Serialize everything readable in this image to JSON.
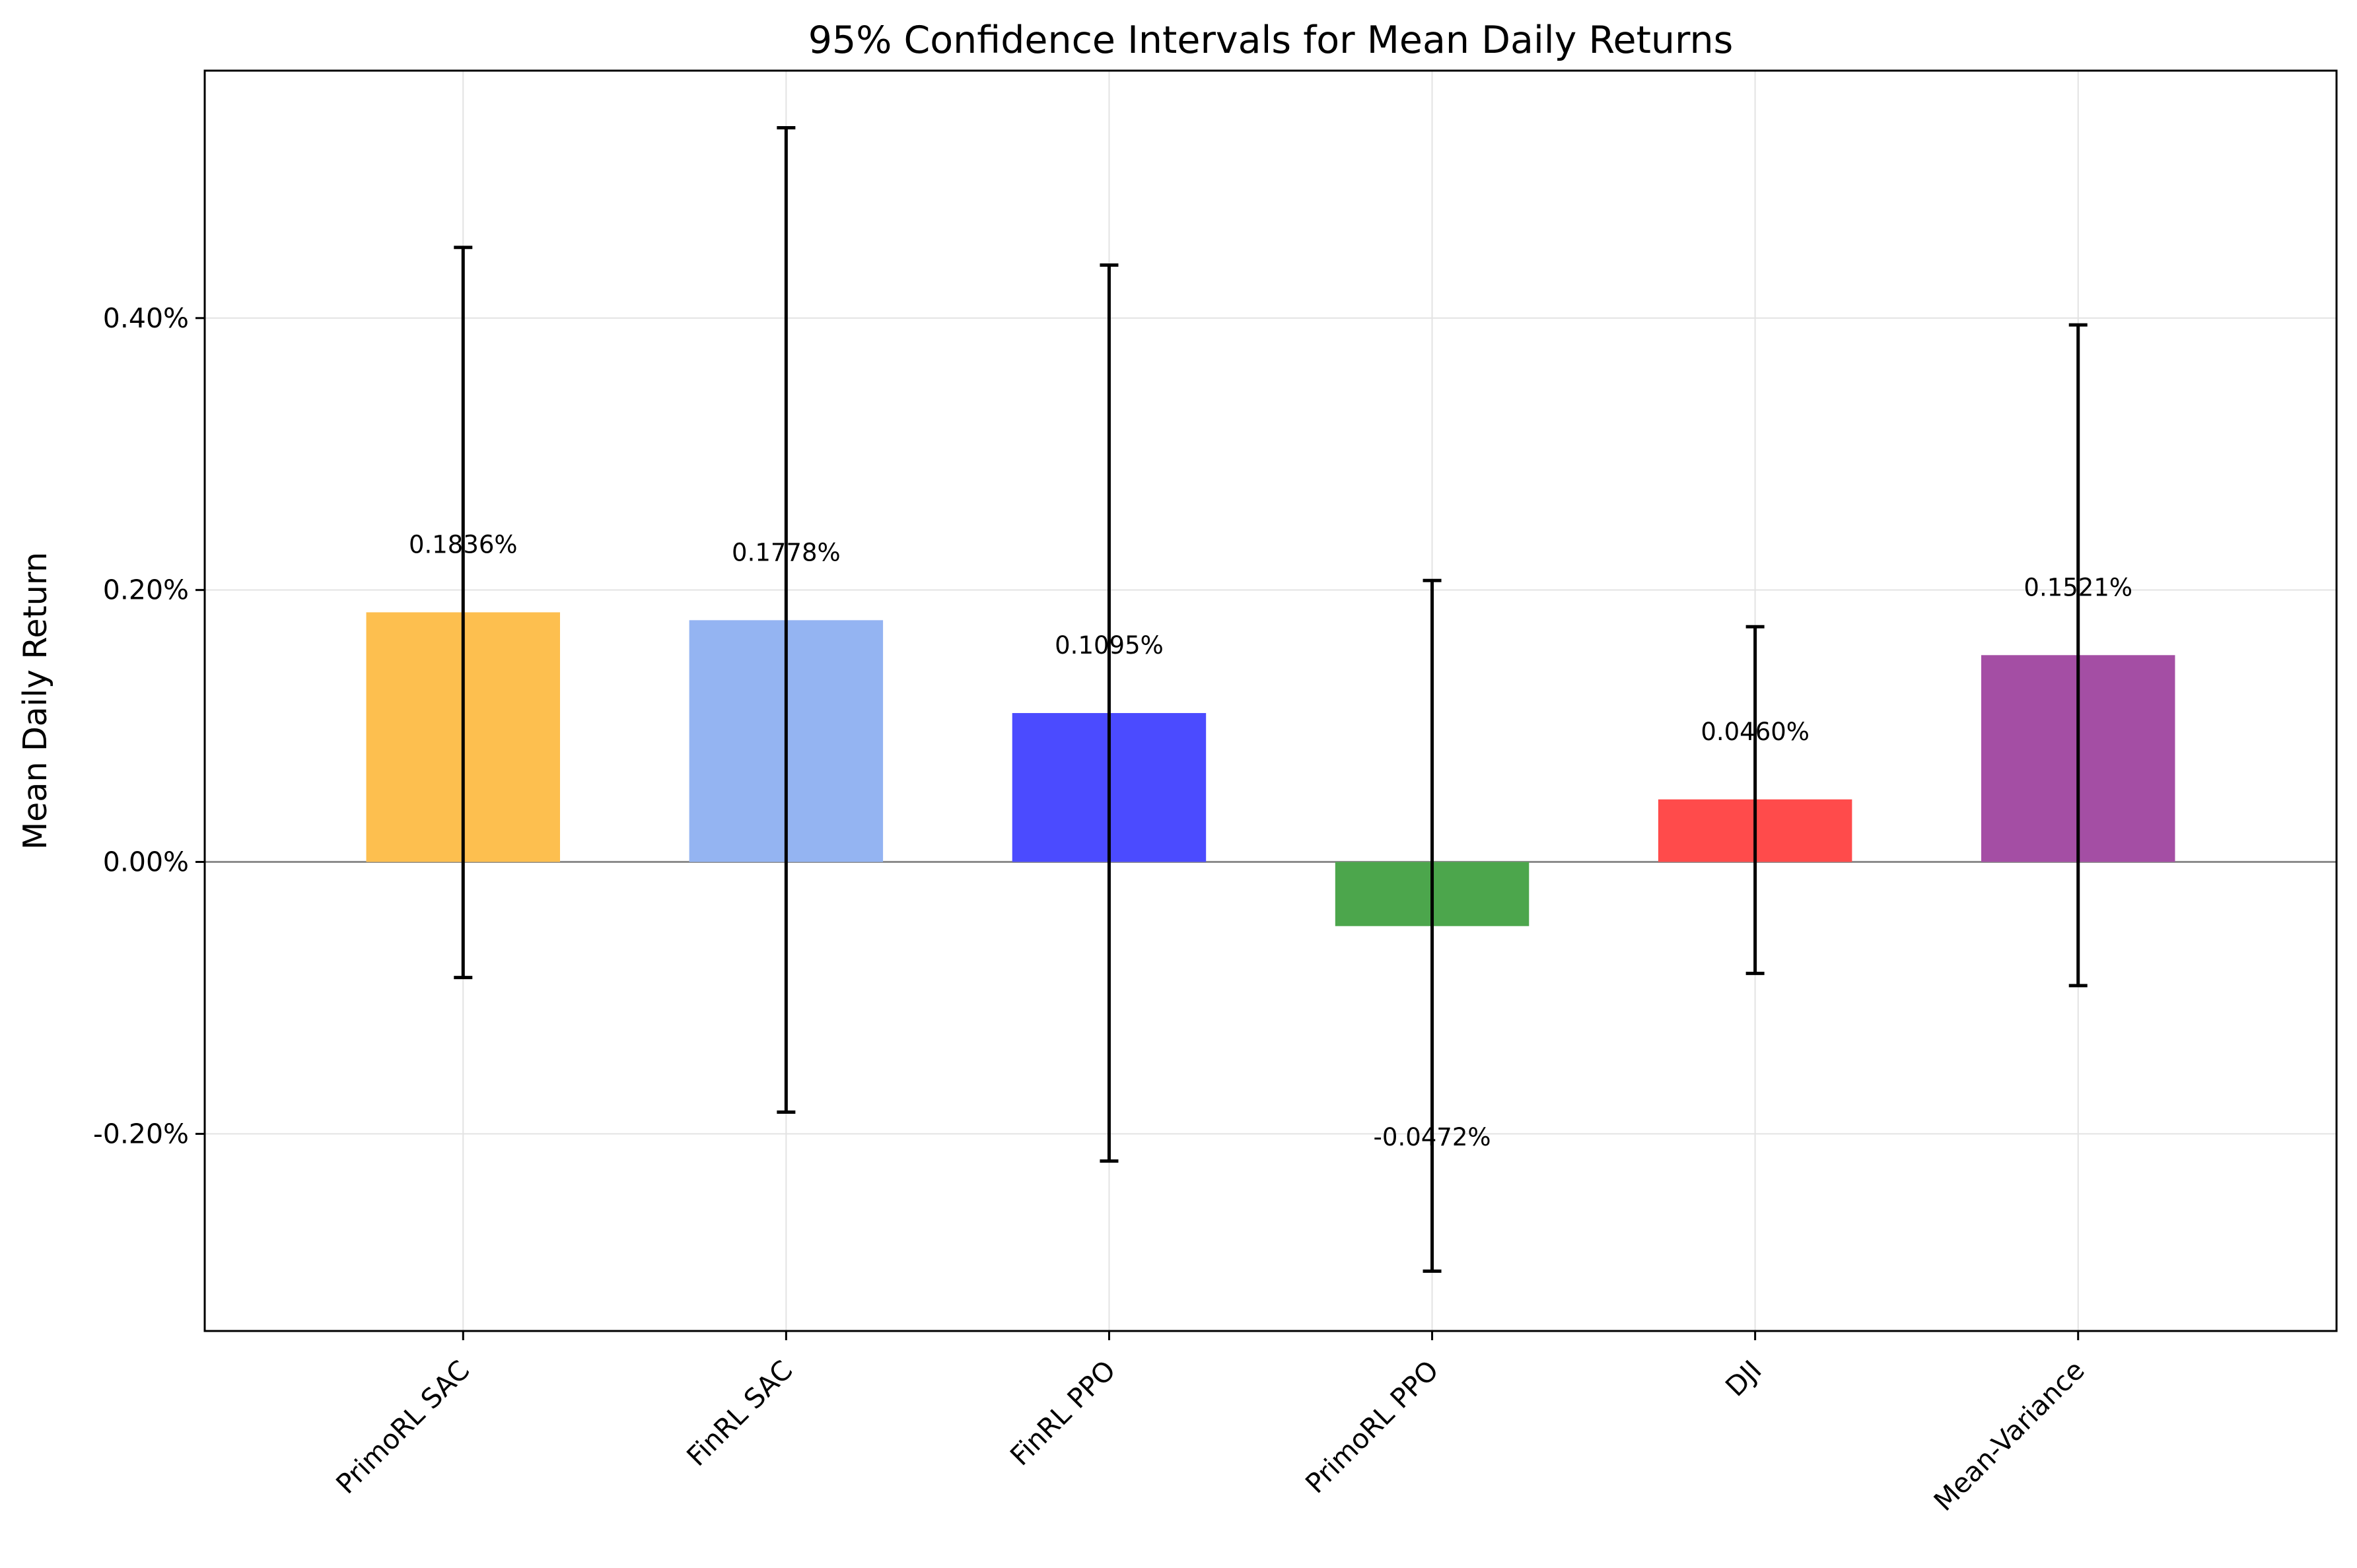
{
  "chart_data": {
    "type": "bar",
    "title": "95% Confidence Intervals for Mean Daily Returns",
    "xlabel": "",
    "ylabel": "Mean Daily Return",
    "categories": [
      "PrimoRL SAC",
      "FinRL SAC",
      "FinRL PPO",
      "PrimoRL PPO",
      "DJI",
      "Mean-Variance"
    ],
    "values": [
      0.1836,
      0.1778,
      0.1095,
      -0.0472,
      0.046,
      0.1521
    ],
    "value_labels": [
      "0.1836%",
      "0.1778%",
      "0.1095%",
      "-0.0472%",
      "0.0460%",
      "0.1521%"
    ],
    "ci_lower": [
      -0.085,
      -0.184,
      -0.22,
      -0.301,
      -0.082,
      -0.091
    ],
    "ci_upper": [
      0.452,
      0.54,
      0.439,
      0.207,
      0.173,
      0.395
    ],
    "colors": [
      "#fdbf4f",
      "#94b4f2",
      "#4b4bff",
      "#4ca64c",
      "#ff4b4b",
      "#a44ea4"
    ],
    "ylim": [
      -0.345,
      0.582
    ],
    "yticks": [
      -0.2,
      0.0,
      0.2,
      0.4
    ],
    "ytick_labels": [
      "-0.20%",
      "0.00%",
      "0.20%",
      "0.40%"
    ],
    "grid": true,
    "legend": "none"
  }
}
